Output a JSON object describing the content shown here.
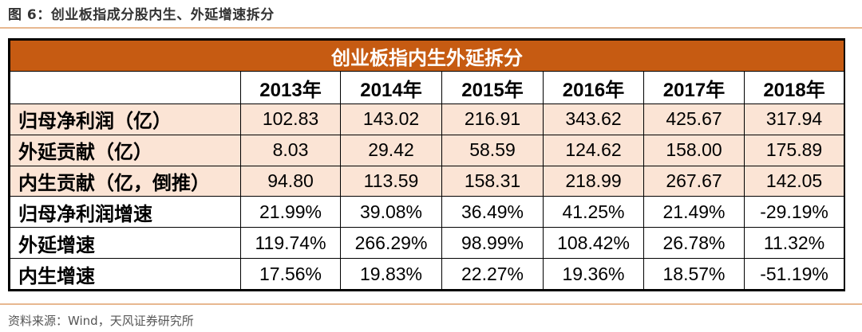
{
  "figure_title": "图 6：创业板指成分股内生、外延增速拆分",
  "table": {
    "title": "创业板指内生外延拆分",
    "years": [
      "2013年",
      "2014年",
      "2015年",
      "2016年",
      "2017年",
      "2018年"
    ],
    "rows": [
      {
        "label": "归母净利润（亿）",
        "values": [
          "102.83",
          "143.02",
          "216.91",
          "343.62",
          "425.67",
          "317.94"
        ]
      },
      {
        "label": "外延贡献（亿）",
        "values": [
          "8.03",
          "29.42",
          "58.59",
          "124.62",
          "158.00",
          "175.89"
        ]
      },
      {
        "label": "内生贡献（亿，倒推）",
        "values": [
          "94.80",
          "113.59",
          "158.31",
          "218.99",
          "267.67",
          "142.05"
        ]
      },
      {
        "label": "归母净利润增速",
        "values": [
          "21.99%",
          "39.08%",
          "36.49%",
          "41.25%",
          "21.49%",
          "-29.19%"
        ]
      },
      {
        "label": "外延增速",
        "values": [
          "119.74%",
          "266.29%",
          "98.99%",
          "108.42%",
          "26.78%",
          "11.32%"
        ]
      },
      {
        "label": "内生增速",
        "values": [
          "17.56%",
          "19.83%",
          "22.27%",
          "19.36%",
          "18.57%",
          "-51.19%"
        ]
      }
    ]
  },
  "source": "资料来源：Wind，天风证券研究所",
  "colors": {
    "header_bg": "#c65b12",
    "shaded_row": "#fbe4d5",
    "rule": "#e7b890"
  }
}
